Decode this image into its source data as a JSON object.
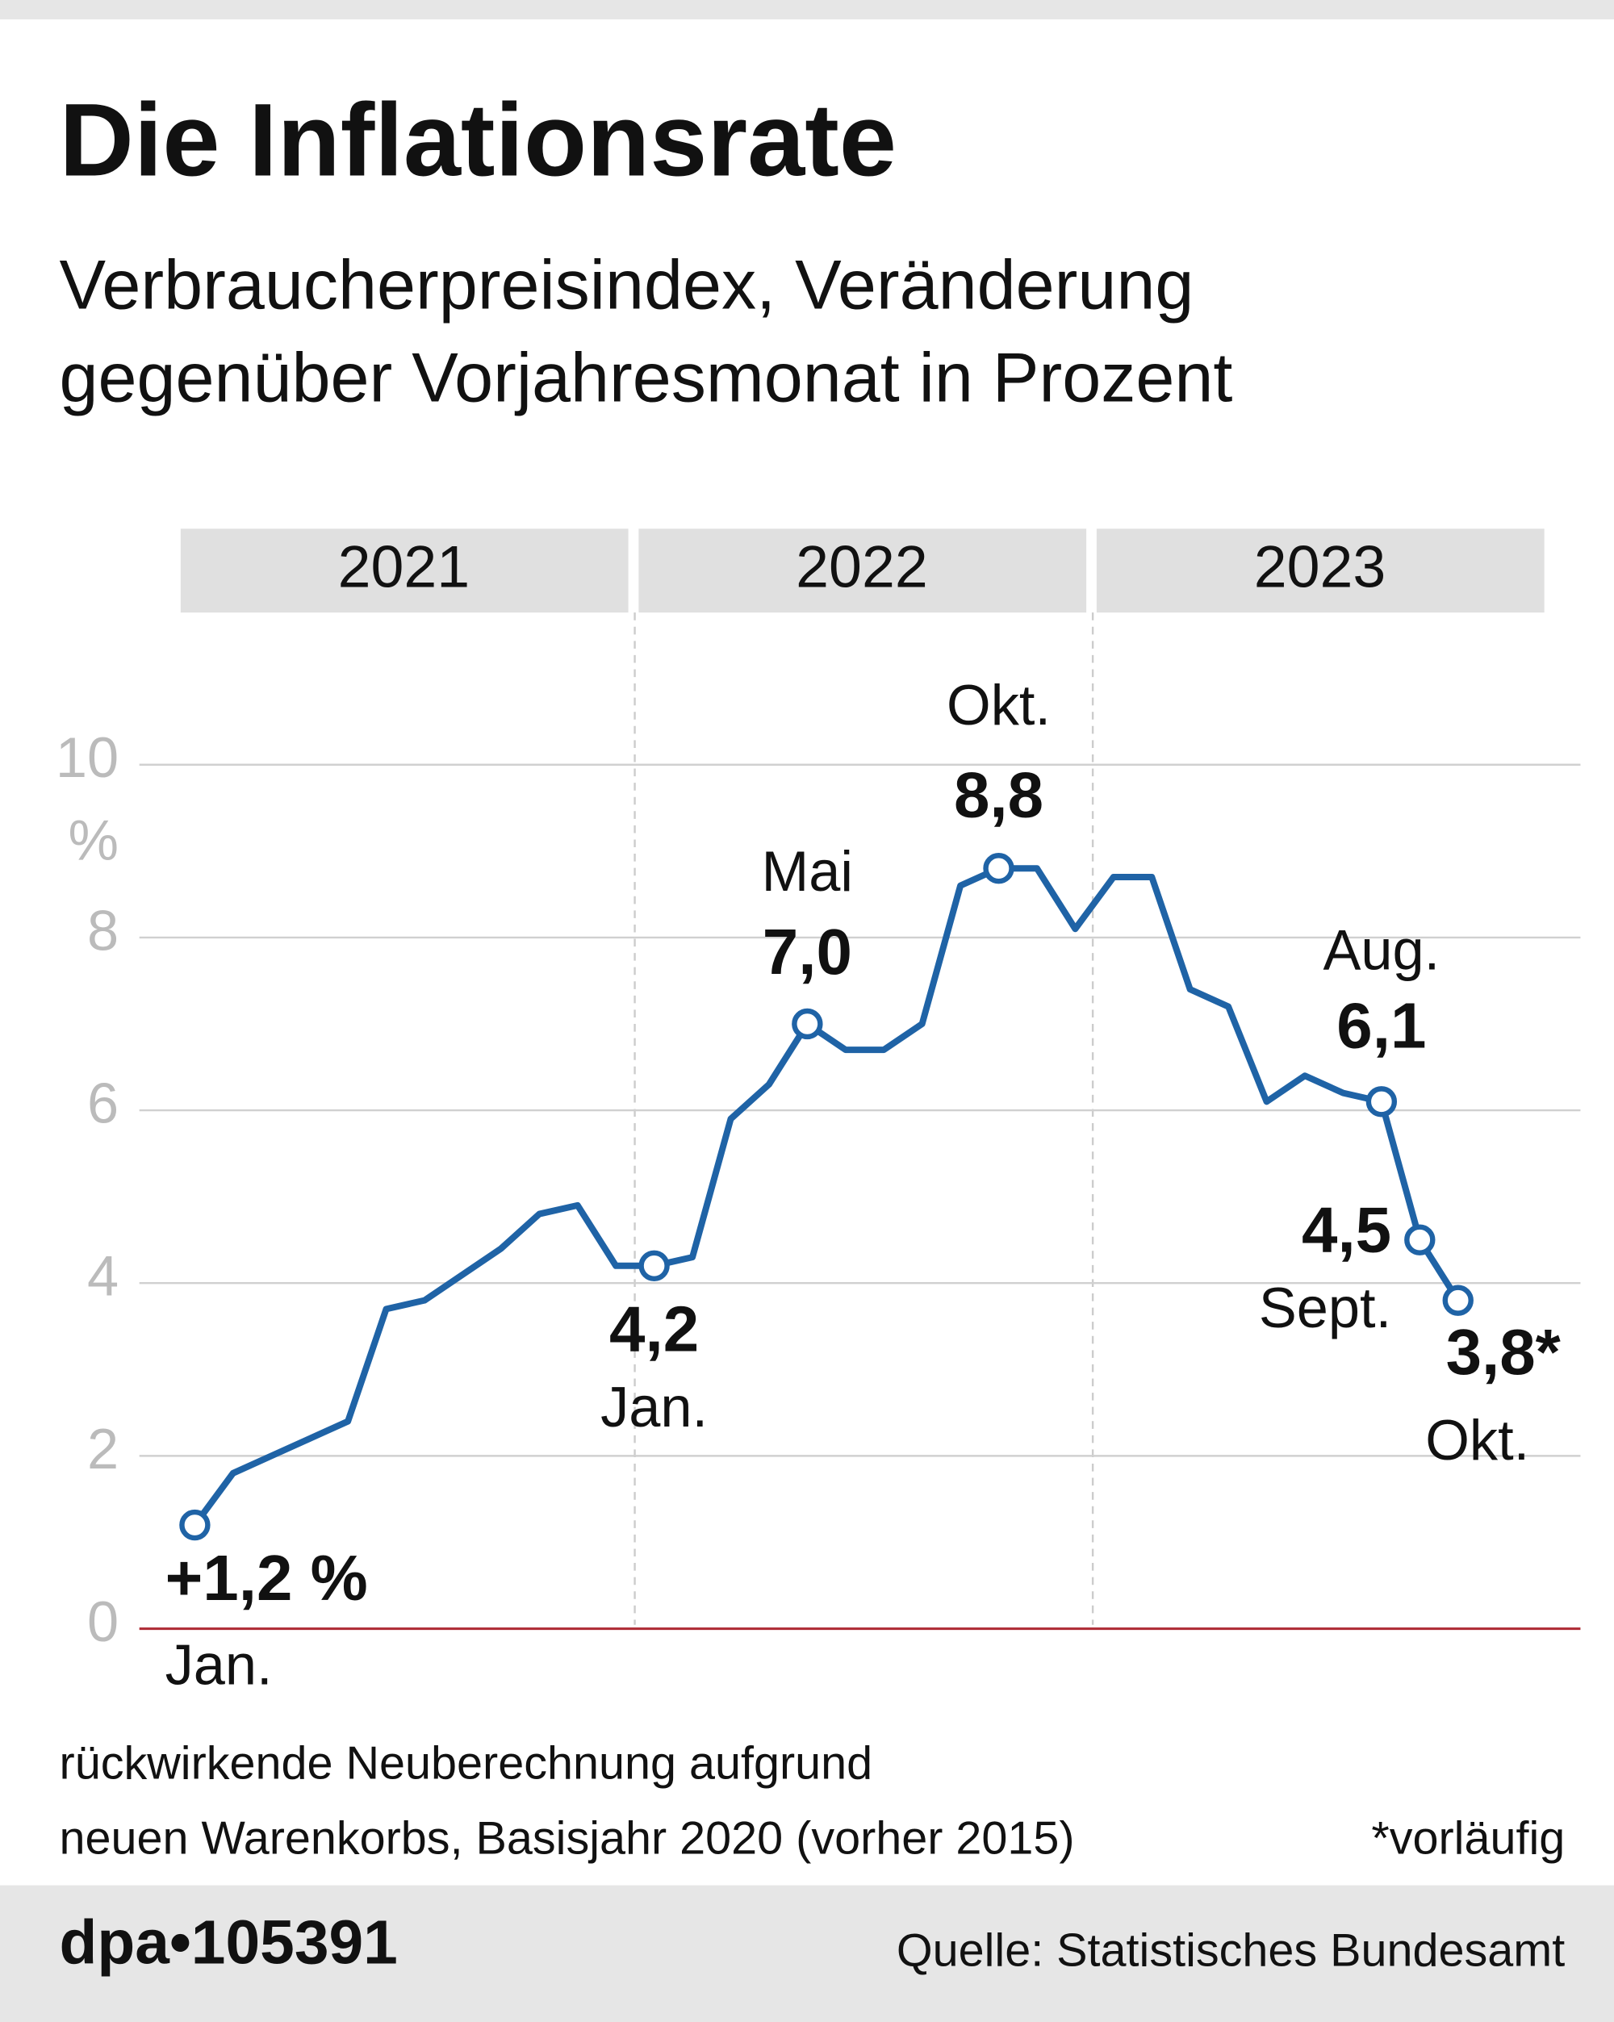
{
  "chart_data": {
    "type": "line",
    "title": "Die Inflationsrate",
    "subtitle": [
      "Verbraucherpreisindex, Veränderung",
      "gegenüber Vorjahresmonat in Prozent"
    ],
    "year_bands": [
      "2021",
      "2022",
      "2023"
    ],
    "categories": [
      "Jan.",
      null,
      null,
      null,
      null,
      null,
      null,
      null,
      null,
      null,
      null,
      null,
      "Jan.",
      null,
      null,
      null,
      "Mai",
      null,
      null,
      null,
      null,
      "Okt.",
      null,
      null,
      null,
      null,
      null,
      null,
      null,
      null,
      null,
      "Aug.",
      "Sept.",
      "Okt."
    ],
    "series": [
      {
        "name": "Inflationsrate",
        "color": "#1f63a6",
        "values": [
          1.2,
          1.8,
          2.0,
          2.2,
          2.4,
          3.7,
          3.8,
          4.1,
          4.4,
          4.8,
          4.9,
          4.2,
          4.2,
          4.3,
          5.9,
          6.3,
          7.0,
          6.7,
          6.7,
          7.0,
          8.6,
          8.8,
          8.8,
          8.1,
          8.7,
          8.7,
          7.4,
          7.2,
          6.1,
          6.4,
          6.2,
          6.1,
          4.5,
          3.8
        ],
        "value_labels": [
          "+1,2 %",
          null,
          null,
          null,
          null,
          null,
          null,
          null,
          null,
          null,
          null,
          null,
          "4,2",
          null,
          null,
          null,
          "7,0",
          null,
          null,
          null,
          null,
          "8,8",
          null,
          null,
          null,
          null,
          null,
          null,
          null,
          null,
          null,
          "6,1",
          "4,5",
          "3,8*"
        ]
      }
    ],
    "ylim": [
      0,
      10
    ],
    "yticks": [
      0,
      2,
      4,
      6,
      8,
      10
    ],
    "y_unit": "%",
    "grid": true,
    "footnote": [
      "rückwirkende Neuberechnung aufgrund",
      "neuen Warenkorbs, Basisjahr 2020 (vorher 2015)"
    ],
    "note": "*vorläufig",
    "id": "dpa•105391",
    "source": "Quelle: Statistisches Bundesamt"
  }
}
